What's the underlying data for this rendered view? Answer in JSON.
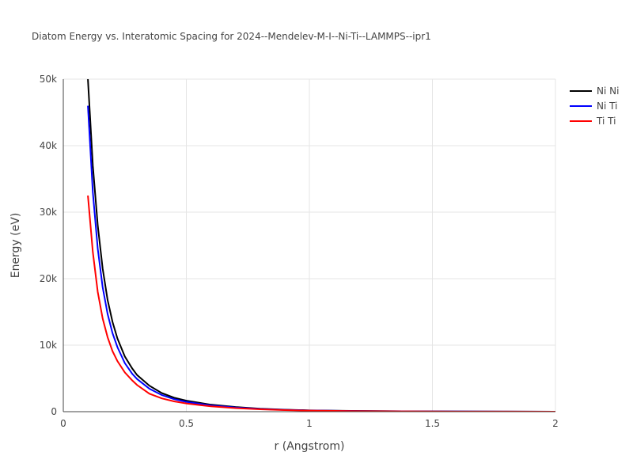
{
  "chart_data": {
    "type": "line",
    "title": "Diatom Energy vs. Interatomic Spacing for 2024--Mendelev-M-I--Ni-Ti--LAMMPS--ipr1",
    "xlabel": "r (Angstrom)",
    "ylabel": "Energy (eV)",
    "xlim": [
      0,
      2
    ],
    "ylim": [
      0,
      50000
    ],
    "x_ticks": [
      0,
      0.5,
      1,
      1.5,
      2
    ],
    "x_tick_labels": [
      "0",
      "0.5",
      "1",
      "1.5",
      "2"
    ],
    "y_ticks": [
      0,
      10000,
      20000,
      30000,
      40000,
      50000
    ],
    "y_tick_labels": [
      "0",
      "10k",
      "20k",
      "30k",
      "40k",
      "50k"
    ],
    "grid": true,
    "legend_position": "top-right",
    "series": [
      {
        "name": "Ni Ni",
        "color": "#000000",
        "points": [
          [
            0.1,
            50000
          ],
          [
            0.12,
            37000
          ],
          [
            0.14,
            28000
          ],
          [
            0.16,
            21500
          ],
          [
            0.18,
            16800
          ],
          [
            0.2,
            13500
          ],
          [
            0.22,
            11000
          ],
          [
            0.25,
            8300
          ],
          [
            0.28,
            6500
          ],
          [
            0.3,
            5500
          ],
          [
            0.35,
            3900
          ],
          [
            0.4,
            2800
          ],
          [
            0.45,
            2100
          ],
          [
            0.5,
            1650
          ],
          [
            0.6,
            1050
          ],
          [
            0.7,
            700
          ],
          [
            0.8,
            450
          ],
          [
            0.9,
            300
          ],
          [
            1.0,
            200
          ],
          [
            1.2,
            100
          ],
          [
            1.4,
            60
          ],
          [
            1.6,
            30
          ],
          [
            1.8,
            15
          ],
          [
            2.0,
            5
          ]
        ]
      },
      {
        "name": "Ni Ti",
        "color": "#0000ff",
        "points": [
          [
            0.1,
            46000
          ],
          [
            0.12,
            33000
          ],
          [
            0.14,
            24500
          ],
          [
            0.16,
            18700
          ],
          [
            0.18,
            14700
          ],
          [
            0.2,
            11800
          ],
          [
            0.22,
            9700
          ],
          [
            0.25,
            7300
          ],
          [
            0.28,
            5700
          ],
          [
            0.3,
            4900
          ],
          [
            0.35,
            3450
          ],
          [
            0.4,
            2500
          ],
          [
            0.45,
            1880
          ],
          [
            0.5,
            1470
          ],
          [
            0.6,
            940
          ],
          [
            0.7,
            620
          ],
          [
            0.8,
            400
          ],
          [
            0.9,
            270
          ],
          [
            1.0,
            180
          ],
          [
            1.2,
            90
          ],
          [
            1.4,
            50
          ],
          [
            1.6,
            25
          ],
          [
            1.8,
            12
          ],
          [
            2.0,
            4
          ]
        ]
      },
      {
        "name": "Ti Ti",
        "color": "#ff0000",
        "points": [
          [
            0.1,
            32500
          ],
          [
            0.12,
            24000
          ],
          [
            0.14,
            18000
          ],
          [
            0.16,
            14000
          ],
          [
            0.18,
            11200
          ],
          [
            0.2,
            9100
          ],
          [
            0.22,
            7600
          ],
          [
            0.25,
            5900
          ],
          [
            0.28,
            4700
          ],
          [
            0.3,
            4000
          ],
          [
            0.35,
            2700
          ],
          [
            0.4,
            2000
          ],
          [
            0.45,
            1550
          ],
          [
            0.5,
            1230
          ],
          [
            0.6,
            800
          ],
          [
            0.7,
            530
          ],
          [
            0.8,
            350
          ],
          [
            0.9,
            240
          ],
          [
            1.0,
            160
          ],
          [
            1.2,
            80
          ],
          [
            1.4,
            45
          ],
          [
            1.6,
            22
          ],
          [
            1.8,
            10
          ],
          [
            2.0,
            4
          ]
        ]
      }
    ]
  }
}
